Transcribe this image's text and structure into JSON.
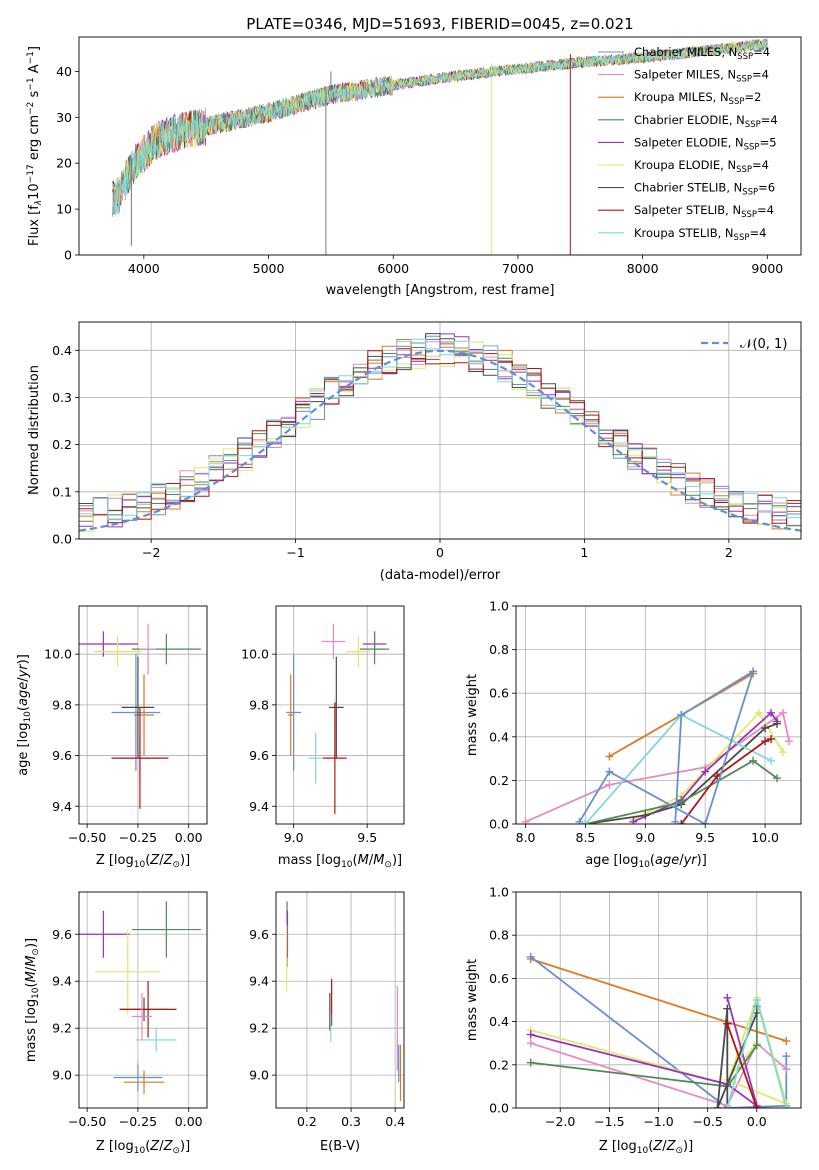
{
  "figure": {
    "title": "PLATE=0346, MJD=51693, FIBERID=0045, z=0.021"
  },
  "colors": {
    "Chabrier MILES": "#6a8fcf",
    "Salpeter MILES": "#e58ac4",
    "Kroupa MILES": "#de7a1e",
    "Chabrier ELODIE": "#4f8a55",
    "Salpeter ELODIE": "#9a32bf",
    "Kroupa ELODIE": "#dfe86a",
    "Chabrier STELIB": "#4a4a4a",
    "Salpeter STELIB": "#b01515",
    "Kroupa STELIB": "#7fd8dc",
    "normal_curve": "#5f8fd6"
  },
  "chart_data": [
    {
      "id": "spectrum",
      "type": "line",
      "xlabel": "wavelength [Angstrom, rest frame]",
      "ylabel": "Flux [f_λ10^-17 erg cm^-2 s^-1 A^-1]",
      "xlim": [
        3480,
        9270
      ],
      "ylim": [
        0,
        47.5
      ],
      "xticks": [
        4000,
        5000,
        6000,
        7000,
        8000,
        9000
      ],
      "yticks": [
        0,
        10,
        20,
        30,
        40
      ],
      "grid": false,
      "legend_position": "top-right",
      "x_range": [
        3750,
        9000
      ],
      "continuum": {
        "x": [
          3750,
          3800,
          3900,
          4000,
          4100,
          4300,
          4500,
          5000,
          5500,
          6000,
          6500,
          7000,
          7500,
          8000,
          8500,
          9000
        ],
        "y": [
          12,
          13,
          19,
          22,
          25,
          27,
          28,
          31,
          35,
          37,
          39,
          40.5,
          42,
          43,
          44.5,
          46
        ]
      },
      "series": [
        {
          "name": "Chabrier MILES",
          "n_ssp": "4"
        },
        {
          "name": "Salpeter MILES",
          "n_ssp": "4"
        },
        {
          "name": "Kroupa MILES",
          "n_ssp": "2"
        },
        {
          "name": "Chabrier ELODIE",
          "n_ssp": "4"
        },
        {
          "name": "Salpeter ELODIE",
          "n_ssp": "5"
        },
        {
          "name": "Kroupa ELODIE",
          "n_ssp": "4"
        },
        {
          "name": "Chabrier STELIB",
          "n_ssp": "6"
        },
        {
          "name": "Salpeter STELIB",
          "n_ssp": "4"
        },
        {
          "name": "Kroupa STELIB",
          "n_ssp": "4"
        }
      ],
      "spikes": [
        {
          "x": 5460,
          "y": 0
        },
        {
          "x": 5500,
          "y": 40
        },
        {
          "x": 6790,
          "y": 0
        },
        {
          "x": 7420,
          "y": 0
        },
        {
          "x": 3900,
          "y": 2
        }
      ],
      "ssp_label": "SSP"
    },
    {
      "id": "residuals",
      "type": "step",
      "xlabel": "(data-model)/error",
      "ylabel": "Normed distribution",
      "xlim": [
        -2.5,
        2.5
      ],
      "ylim": [
        0,
        0.46
      ],
      "xticks": [
        -2,
        -1,
        0,
        1,
        2
      ],
      "yticks": [
        0.0,
        0.1,
        0.2,
        0.3,
        0.4
      ],
      "grid": true,
      "legend_position": "top-right",
      "legend": "𝒩(0, 1)",
      "bin_width": 0.1,
      "bin_start": -2.5,
      "n_bins": 50,
      "spread": 0.035
    },
    {
      "id": "age_vs_Z",
      "type": "scatter",
      "xlabel": "Z [log10(Z/Z☉)]",
      "ylabel": "age  [log10(age/yr)]",
      "xlim": [
        -0.54,
        0.09
      ],
      "ylim": [
        9.33,
        10.19
      ],
      "xticks": [
        -0.5,
        -0.25,
        0.0
      ],
      "yticks": [
        9.4,
        9.6,
        9.8,
        10.0
      ],
      "grid": true,
      "points": [
        {
          "model": "Salpeter ELODIE",
          "x": -0.42,
          "y": 10.04,
          "xerr": 0.17,
          "yerr": 0.05
        },
        {
          "model": "Kroupa ELODIE",
          "x": -0.35,
          "y": 10.01,
          "xerr": 0.12,
          "yerr": 0.06
        },
        {
          "model": "Chabrier ELODIE",
          "x": -0.11,
          "y": 10.02,
          "xerr": 0.17,
          "yerr": 0.06
        },
        {
          "model": "Salpeter MILES",
          "x": -0.2,
          "y": 10.02,
          "xerr": 0.04,
          "yerr": 0.1
        },
        {
          "model": "Kroupa MILES",
          "x": -0.22,
          "y": 9.76,
          "xerr": 0.05,
          "yerr": 0.16
        },
        {
          "model": "Chabrier MILES",
          "x": -0.26,
          "y": 9.77,
          "xerr": 0.12,
          "yerr": 0.23
        },
        {
          "model": "Chabrier STELIB",
          "x": -0.25,
          "y": 9.79,
          "xerr": 0.08,
          "yerr": 0.2
        },
        {
          "model": "Kroupa STELIB",
          "x": -0.24,
          "y": 9.59,
          "xerr": 0.1,
          "yerr": 0.08
        },
        {
          "model": "Salpeter STELIB",
          "x": -0.24,
          "y": 9.59,
          "xerr": 0.14,
          "yerr": 0.2
        }
      ]
    },
    {
      "id": "age_vs_mass",
      "type": "scatter",
      "xlabel": "mass [log10(M/M☉)]",
      "ylabel": "",
      "xlim": [
        8.88,
        9.75
      ],
      "ylim": [
        9.33,
        10.19
      ],
      "xticks": [
        9.0,
        9.5
      ],
      "yticks": [
        9.4,
        9.6,
        9.8,
        10.0
      ],
      "grid": true,
      "points": [
        {
          "model": "Salpeter ELODIE",
          "x": 9.55,
          "y": 10.04,
          "xerr": 0.08,
          "yerr": 0.05
        },
        {
          "model": "Kroupa ELODIE",
          "x": 9.44,
          "y": 10.01,
          "xerr": 0.08,
          "yerr": 0.06
        },
        {
          "model": "Chabrier ELODIE",
          "x": 9.55,
          "y": 10.02,
          "xerr": 0.1,
          "yerr": 0.06
        },
        {
          "model": "Salpeter MILES",
          "x": 9.27,
          "y": 10.05,
          "xerr": 0.08,
          "yerr": 0.07
        },
        {
          "model": "Kroupa MILES",
          "x": 8.98,
          "y": 9.76,
          "xerr": 0.02,
          "yerr": 0.16
        },
        {
          "model": "Chabrier MILES",
          "x": 9.0,
          "y": 9.77,
          "xerr": 0.05,
          "yerr": 0.23
        },
        {
          "model": "Chabrier STELIB",
          "x": 9.29,
          "y": 9.79,
          "xerr": 0.05,
          "yerr": 0.2
        },
        {
          "model": "Kroupa STELIB",
          "x": 9.15,
          "y": 9.59,
          "xerr": 0.05,
          "yerr": 0.1
        },
        {
          "model": "Salpeter STELIB",
          "x": 9.28,
          "y": 9.59,
          "xerr": 0.08,
          "yerr": 0.22
        }
      ]
    },
    {
      "id": "weight_vs_age",
      "type": "line",
      "xlabel": "age  [log10(age/yr)]",
      "ylabel": "mass weight",
      "xlim": [
        7.92,
        10.3
      ],
      "ylim": [
        0,
        1.0
      ],
      "xticks": [
        8.0,
        8.5,
        9.0,
        9.5,
        10.0
      ],
      "yticks": [
        0.0,
        0.2,
        0.4,
        0.6,
        0.8,
        1.0
      ],
      "grid": true,
      "series": [
        {
          "model": "Kroupa MILES",
          "x": [
            8.7,
            9.9
          ],
          "y": [
            0.31,
            0.69
          ]
        },
        {
          "model": "Salpeter MILES",
          "x": [
            8.0,
            8.7,
            9.5,
            10.15,
            10.2
          ],
          "y": [
            0.01,
            0.18,
            0.26,
            0.51,
            0.38
          ]
        },
        {
          "model": "Kroupa ELODIE",
          "x": [
            8.9,
            9.3,
            9.95,
            10.15
          ],
          "y": [
            0.02,
            0.13,
            0.51,
            0.33
          ]
        },
        {
          "model": "Salpeter ELODIE",
          "x": [
            8.9,
            9.3,
            9.5,
            10.05,
            10.1
          ],
          "y": [
            0.01,
            0.11,
            0.24,
            0.51,
            0.47
          ]
        },
        {
          "model": "Chabrier STELIB",
          "x": [
            8.5,
            9.0,
            9.3,
            10.0,
            10.1
          ],
          "y": [
            0.0,
            0.04,
            0.09,
            0.44,
            0.46
          ]
        },
        {
          "model": "Chabrier ELODIE",
          "x": [
            8.5,
            9.3,
            9.9,
            10.1
          ],
          "y": [
            0.0,
            0.1,
            0.29,
            0.21
          ]
        },
        {
          "model": "Kroupa STELIB",
          "x": [
            8.5,
            9.3,
            10.05
          ],
          "y": [
            0.0,
            0.5,
            0.29
          ]
        },
        {
          "model": "Salpeter STELIB",
          "x": [
            9.3,
            9.6,
            10.0,
            10.05
          ],
          "y": [
            0.0,
            0.22,
            0.38,
            0.39
          ]
        },
        {
          "model": "Chabrier MILES",
          "x": [
            8.45,
            8.7,
            9.5,
            9.9,
            9.3,
            9.25
          ],
          "y": [
            0.01,
            0.24,
            0.0,
            0.7,
            0.5,
            0.01
          ]
        }
      ]
    },
    {
      "id": "mass_vs_Z",
      "type": "scatter",
      "xlabel": "Z [log10(Z/Z☉)]",
      "ylabel": "mass [log10(M/M☉)]",
      "xlim": [
        -0.54,
        0.09
      ],
      "ylim": [
        8.86,
        9.78
      ],
      "xticks": [
        -0.5,
        -0.25,
        0.0
      ],
      "yticks": [
        9.0,
        9.2,
        9.4,
        9.6
      ],
      "grid": true,
      "points": [
        {
          "model": "Salpeter ELODIE",
          "x": -0.42,
          "y": 9.6,
          "xerr": 0.13,
          "yerr": 0.1
        },
        {
          "model": "Chabrier ELODIE",
          "x": -0.11,
          "y": 9.62,
          "xerr": 0.17,
          "yerr": 0.12
        },
        {
          "model": "Kroupa ELODIE",
          "x": -0.3,
          "y": 9.44,
          "xerr": 0.16,
          "yerr": 0.18
        },
        {
          "model": "Chabrier STELIB",
          "x": -0.22,
          "y": 9.28,
          "xerr": 0.12,
          "yerr": 0.05
        },
        {
          "model": "Salpeter STELIB",
          "x": -0.2,
          "y": 9.28,
          "xerr": 0.14,
          "yerr": 0.12
        },
        {
          "model": "Salpeter MILES",
          "x": -0.23,
          "y": 9.25,
          "xerr": 0.05,
          "yerr": 0.1
        },
        {
          "model": "Kroupa STELIB",
          "x": -0.16,
          "y": 9.15,
          "xerr": 0.1,
          "yerr": 0.05
        },
        {
          "model": "Chabrier MILES",
          "x": -0.25,
          "y": 8.99,
          "xerr": 0.12,
          "yerr": 0.06
        },
        {
          "model": "Kroupa MILES",
          "x": -0.22,
          "y": 8.97,
          "xerr": 0.1,
          "yerr": 0.05
        }
      ]
    },
    {
      "id": "mass_vs_ebv",
      "type": "scatter",
      "xlabel": "E(B-V)",
      "ylabel": "",
      "xlim": [
        0.13,
        0.42
      ],
      "ylim": [
        8.86,
        9.78
      ],
      "xticks": [
        0.2,
        0.3,
        0.4
      ],
      "yticks": [
        9.0,
        9.2,
        9.4,
        9.6
      ],
      "grid": true,
      "points": [
        {
          "model": "Chabrier ELODIE",
          "x": 0.155,
          "y": 9.6,
          "xerr": 0,
          "yerr": 0.14
        },
        {
          "model": "Salpeter ELODIE",
          "x": 0.156,
          "y": 9.6,
          "xerr": 0,
          "yerr": 0.1
        },
        {
          "model": "Kroupa ELODIE",
          "x": 0.154,
          "y": 9.5,
          "xerr": 0,
          "yerr": 0.14
        },
        {
          "model": "Chabrier STELIB",
          "x": 0.252,
          "y": 9.27,
          "xerr": 0,
          "yerr": 0.08
        },
        {
          "model": "Salpeter STELIB",
          "x": 0.256,
          "y": 9.31,
          "xerr": 0,
          "yerr": 0.1
        },
        {
          "model": "Kroupa STELIB",
          "x": 0.254,
          "y": 9.2,
          "xerr": 0,
          "yerr": 0.06
        },
        {
          "model": "Salpeter MILES",
          "x": 0.405,
          "y": 9.2,
          "xerr": 0,
          "yerr": 0.18
        },
        {
          "model": "Chabrier MILES",
          "x": 0.408,
          "y": 9.05,
          "xerr": 0,
          "yerr": 0.08
        },
        {
          "model": "Kroupa MILES",
          "x": 0.412,
          "y": 9.01,
          "xerr": 0,
          "yerr": 0.12
        }
      ]
    },
    {
      "id": "weight_vs_Z",
      "type": "line",
      "xlabel": "Z [log10(Z/Z☉)]",
      "ylabel": "mass weight",
      "xlim": [
        -2.45,
        0.45
      ],
      "ylim": [
        0,
        1.0
      ],
      "xticks": [
        -2.0,
        -1.5,
        -1.0,
        -0.5,
        0.0
      ],
      "yticks": [
        0.0,
        0.2,
        0.4,
        0.6,
        0.8,
        1.0
      ],
      "grid": true,
      "series": [
        {
          "model": "Kroupa MILES",
          "x": [
            -2.3,
            0.3
          ],
          "y": [
            0.69,
            0.31
          ]
        },
        {
          "model": "Chabrier MILES",
          "x": [
            -2.3,
            -0.3,
            0.3,
            0.3
          ],
          "y": [
            0.7,
            0.0,
            0.01,
            0.24
          ]
        },
        {
          "model": "Salpeter MILES",
          "x": [
            -2.3,
            -0.3,
            0.0,
            0.3
          ],
          "y": [
            0.3,
            0.01,
            0.3,
            0.18
          ]
        },
        {
          "model": "Kroupa ELODIE",
          "x": [
            -2.3,
            -0.3,
            0.0,
            0.3,
            -0.3,
            0.0
          ],
          "y": [
            0.36,
            0.11,
            0.51,
            0.02,
            0.13,
            0.3
          ]
        },
        {
          "model": "Salpeter ELODIE",
          "x": [
            -2.3,
            -0.3,
            0.0,
            -0.3
          ],
          "y": [
            0.34,
            0.11,
            0.01,
            0.51
          ]
        },
        {
          "model": "Chabrier ELODIE",
          "x": [
            -2.3,
            -0.3,
            0.0,
            0.0
          ],
          "y": [
            0.21,
            0.1,
            0.29,
            0.47
          ]
        },
        {
          "model": "Chabrier STELIB",
          "x": [
            -0.3,
            -0.3,
            -0.4,
            0.0
          ],
          "y": [
            0.0,
            0.46,
            0.0,
            0.44
          ]
        },
        {
          "model": "Kroupa STELIB",
          "x": [
            -0.3,
            0.0,
            0.3
          ],
          "y": [
            0.0,
            0.5,
            0.0
          ]
        },
        {
          "model": "Salpeter STELIB",
          "x": [
            -0.3,
            0.0
          ],
          "y": [
            0.39,
            0.0
          ]
        }
      ]
    }
  ]
}
